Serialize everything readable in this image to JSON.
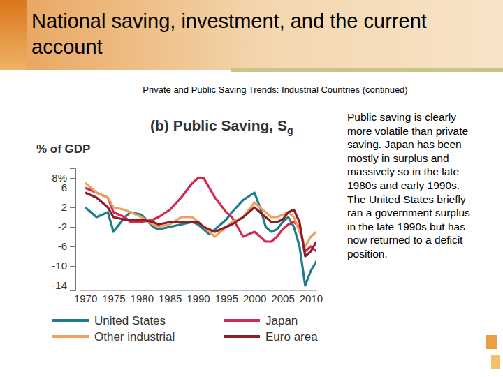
{
  "slide": {
    "title": "National saving, investment, and the current account",
    "subtitle": "Private and Public Saving Trends: Industrial Countries (continued)",
    "note": "Public saving is clearly more volatile than private saving. Japan has been mostly in surplus and massively so in the late 1980s and early 1990s. The United States briefly ran a government surplus in the late 1990s but has now returned to a deficit position."
  },
  "chart_data": {
    "type": "line",
    "title": "(b) Public Saving, Sg",
    "y_label": "% of GDP",
    "x": [
      1970,
      1972,
      1974,
      1975,
      1977,
      1978,
      1980,
      1982,
      1983,
      1985,
      1987,
      1989,
      1990,
      1991,
      1992,
      1993,
      1995,
      1996,
      1998,
      2000,
      2001,
      2002,
      2003,
      2004,
      2005,
      2006,
      2007,
      2008,
      2009,
      2010,
      2011
    ],
    "series": [
      {
        "name": "United States",
        "color": "#1c7d8c",
        "values": [
          2,
          0,
          1,
          -3,
          0,
          1,
          0.5,
          -2,
          -2.5,
          -2,
          -1.5,
          -1,
          -1.5,
          -2.5,
          -3.5,
          -2.5,
          -0.5,
          1,
          3.5,
          5,
          2,
          -2,
          -3,
          -2.5,
          -1,
          0,
          -2,
          -6,
          -14,
          -11,
          -9
        ]
      },
      {
        "name": "Japan",
        "color": "#d5264e",
        "values": [
          6,
          5,
          4,
          1,
          0,
          -1,
          -1,
          -0.5,
          0,
          1.5,
          4,
          7,
          8,
          8,
          6,
          4,
          1,
          0,
          -4,
          -3,
          -4,
          -5,
          -5,
          -4,
          -2.5,
          -1.5,
          -1,
          -2,
          -7,
          -6,
          -7
        ]
      },
      {
        "name": "Other industrial",
        "color": "#f0a05a",
        "values": [
          7,
          5,
          4,
          2,
          1.5,
          1,
          0,
          -1.5,
          -2,
          -1.5,
          0,
          0,
          -1,
          -2,
          -3,
          -4,
          -2,
          -1,
          0,
          3,
          2,
          1,
          0,
          0,
          0.5,
          1,
          0,
          -3,
          -6,
          -4,
          -3
        ]
      },
      {
        "name": "Euro area",
        "color": "#8a1f2b",
        "values": [
          5,
          4,
          2,
          0,
          -0.5,
          -0.5,
          -0.5,
          -1,
          -1.5,
          -1,
          -1,
          -1,
          -1,
          -2,
          -2.5,
          -3,
          -2,
          -1.5,
          0,
          2,
          1,
          0,
          -1,
          -1,
          -0.5,
          1,
          1.5,
          -1,
          -8,
          -7,
          -5
        ]
      }
    ],
    "xlim": [
      1969,
      2011
    ],
    "xticks": [
      1970,
      1975,
      1980,
      1985,
      1990,
      1995,
      2000,
      2005,
      2010
    ],
    "ylim": [
      -15,
      10
    ],
    "yticks": [
      {
        "value": 8,
        "label": "8%"
      },
      6,
      2,
      -2,
      -6,
      -10,
      -14
    ],
    "grid": false,
    "legend": "bottom"
  }
}
